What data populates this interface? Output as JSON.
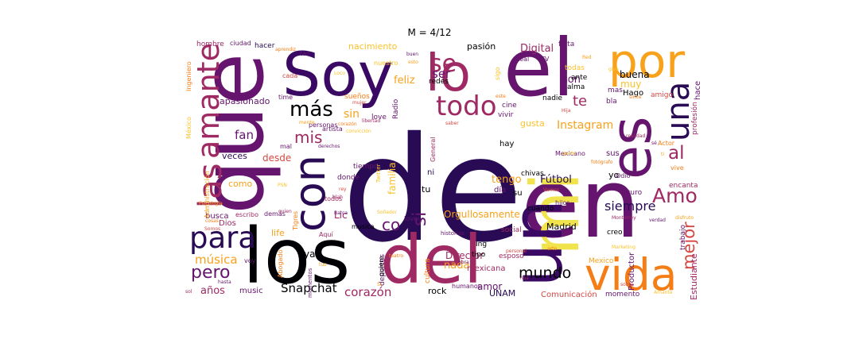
{
  "title": "M = 4/12",
  "palette": [
    "#000004",
    "#280b54",
    "#65156e",
    "#9f2a63",
    "#d44842",
    "#f57d15",
    "#fac228",
    "#fcffa4"
  ],
  "words": [
    {
      "text": "de",
      "color": "#280b54"
    },
    {
      "text": "en",
      "color": "#65156e"
    },
    {
      "text": "que",
      "color": "#65156e"
    },
    {
      "text": "los",
      "color": "#000004"
    },
    {
      "text": "del",
      "color": "#9f2a63"
    },
    {
      "text": "el",
      "color": "#65156e"
    },
    {
      "text": "mi",
      "color": "#f1e34b"
    },
    {
      "text": "Soy",
      "color": "#3a0963"
    },
    {
      "text": "lo",
      "color": "#9f2a63"
    },
    {
      "text": "por",
      "color": "#f8a11a"
    },
    {
      "text": "un",
      "color": "#3a0963"
    },
    {
      "text": "vida",
      "color": "#f57d15"
    },
    {
      "text": "es",
      "color": "#65156e"
    },
    {
      "text": "con",
      "color": "#280b54"
    },
    {
      "text": "las",
      "color": "#9f2a63"
    },
    {
      "text": "para",
      "color": "#280b54"
    },
    {
      "text": "una",
      "color": "#280b54"
    },
    {
      "text": "amante",
      "color": "#9f2a63"
    },
    {
      "text": "todo",
      "color": "#9f2a63"
    },
    {
      "text": "se",
      "color": "#9f2a63"
    },
    {
      "text": "más",
      "color": "#000004"
    },
    {
      "text": "Amo",
      "color": "#9f2a63"
    },
    {
      "text": "mejor",
      "color": "#d44842"
    },
    {
      "text": "pero",
      "color": "#65156e"
    },
    {
      "text": "al",
      "color": "#9f2a63"
    },
    {
      "text": "mis",
      "color": "#9f2a63"
    },
    {
      "text": "si",
      "color": "#65156e"
    },
    {
      "text": "co",
      "color": "#65156e"
    },
    {
      "text": "mundo",
      "color": "#000004"
    },
    {
      "text": "siempre",
      "color": "#280b54"
    },
    {
      "text": "Snapchat",
      "color": "#000004"
    },
    {
      "text": "Instagram",
      "color": "#f8a11a"
    },
    {
      "text": "fan",
      "color": "#65156e"
    },
    {
      "text": "música",
      "color": "#f8a11a"
    },
    {
      "text": "corazón",
      "color": "#9f2a63"
    },
    {
      "text": "te",
      "color": "#9f2a63"
    },
    {
      "text": "ser",
      "color": "#65156e"
    },
    {
      "text": "sin",
      "color": "#f8a11a"
    },
    {
      "text": "Digital",
      "color": "#9f2a63"
    },
    {
      "text": "son",
      "color": "#65156e"
    },
    {
      "text": "feliz",
      "color": "#f8a11a"
    },
    {
      "text": "tengo",
      "color": "#f8a11a"
    },
    {
      "text": "Fútbol",
      "color": "#280b54"
    },
    {
      "text": "nada",
      "color": "#f8a11a"
    },
    {
      "text": "Orgullosamente",
      "color": "#f8a11a"
    },
    {
      "text": "años",
      "color": "#9f2a63"
    },
    {
      "text": "amor",
      "color": "#65156e"
    },
    {
      "text": "Lic",
      "color": "#9f2a63"
    },
    {
      "text": "ya",
      "color": "#000004"
    },
    {
      "text": "desde",
      "color": "#d44842"
    },
    {
      "text": "veces",
      "color": "#280b54"
    },
    {
      "text": "como",
      "color": "#f8a11a"
    },
    {
      "text": "Director",
      "color": "#9f2a63"
    },
    {
      "text": "buena",
      "color": "#000004"
    },
    {
      "text": "muy",
      "color": "#fac228"
    },
    {
      "text": "gusta",
      "color": "#fac228"
    },
    {
      "text": "apasionado",
      "color": "#65156e"
    },
    {
      "text": "nacimiento",
      "color": "#fac228"
    },
    {
      "text": "pasión",
      "color": "#000004"
    },
    {
      "text": "Madrid",
      "color": "#000004"
    },
    {
      "text": "Estudiante",
      "color": "#9f2a63"
    },
    {
      "text": "Productor",
      "color": "#65156e"
    },
    {
      "text": "Comunicación",
      "color": "#d44842"
    },
    {
      "text": "rock",
      "color": "#000004"
    },
    {
      "text": "UNAM",
      "color": "#280b54"
    },
    {
      "text": "mexicana",
      "color": "#9f2a63"
    },
    {
      "text": "music",
      "color": "#65156e"
    },
    {
      "text": "life",
      "color": "#f8a11a"
    },
    {
      "text": "Dios",
      "color": "#9f2a63"
    },
    {
      "text": "busca",
      "color": "#65156e"
    },
    {
      "text": "hay",
      "color": "#000004"
    },
    {
      "text": "día",
      "color": "#65156e"
    },
    {
      "text": "tu",
      "color": "#000004"
    },
    {
      "text": "ni",
      "color": "#280b54"
    },
    {
      "text": "su",
      "color": "#000004"
    },
    {
      "text": "yo",
      "color": "#000004"
    },
    {
      "text": "sus",
      "color": "#65156e"
    },
    {
      "text": "Hago",
      "color": "#000004"
    },
    {
      "text": "amigo",
      "color": "#d44842"
    },
    {
      "text": "bla",
      "color": "#65156e"
    },
    {
      "text": "alma",
      "color": "#000004"
    },
    {
      "text": "ante",
      "color": "#000004"
    },
    {
      "text": "todas",
      "color": "#fac228"
    },
    {
      "text": "mas",
      "color": "#65156e"
    },
    {
      "text": "hace",
      "color": "#65156e"
    },
    {
      "text": "profesión",
      "color": "#9f2a63"
    },
    {
      "text": "futuro",
      "color": "#65156e"
    },
    {
      "text": "encanta",
      "color": "#9f2a63"
    },
    {
      "text": "trabajo",
      "color": "#65156e"
    },
    {
      "text": "creo",
      "color": "#000004"
    },
    {
      "text": "Mexico",
      "color": "#f8a11a"
    },
    {
      "text": "momento",
      "color": "#65156e"
    },
    {
      "text": "esposo",
      "color": "#9f2a63"
    },
    {
      "text": "cultura",
      "color": "#f57d15"
    },
    {
      "text": "deportes",
      "color": "#65156e"
    },
    {
      "text": "social",
      "color": "#9f2a63"
    },
    {
      "text": "Ing",
      "color": "#000004"
    },
    {
      "text": "tipo",
      "color": "#000004"
    },
    {
      "text": "hombre",
      "color": "#9f2a63"
    },
    {
      "text": "hacer",
      "color": "#280b54"
    },
    {
      "text": "ciudad",
      "color": "#65156e"
    },
    {
      "text": "tan",
      "color": "#65156e"
    },
    {
      "text": "cada",
      "color": "#d44842"
    },
    {
      "text": "time",
      "color": "#65156e"
    },
    {
      "text": "sueños",
      "color": "#f57d15"
    },
    {
      "text": "love",
      "color": "#65156e"
    },
    {
      "text": "redes",
      "color": "#000004"
    },
    {
      "text": "cine",
      "color": "#65156e"
    },
    {
      "text": "vivir",
      "color": "#65156e"
    },
    {
      "text": "nadie",
      "color": "#000004"
    },
    {
      "text": "Real",
      "color": "#65156e"
    },
    {
      "text": "TV",
      "color": "#65156e"
    },
    {
      "text": "tiempo",
      "color": "#65156e"
    },
    {
      "text": "donde",
      "color": "#65156e"
    },
    {
      "text": "quiero",
      "color": "#000004"
    },
    {
      "text": "General",
      "color": "#9f2a63"
    },
    {
      "text": "Radio",
      "color": "#65156e"
    },
    {
      "text": "familia",
      "color": "#fac228"
    },
    {
      "text": "chivas",
      "color": "#000004"
    },
    {
      "text": "Mexicano",
      "color": "#65156e"
    },
    {
      "text": "cuando",
      "color": "#000004"
    },
    {
      "text": "hijos",
      "color": "#65156e"
    },
    {
      "text": "vive",
      "color": "#f57d15"
    },
    {
      "text": "Actor",
      "color": "#f57d15"
    },
    {
      "text": "Odio",
      "color": "#65156e"
    },
    {
      "text": "todos",
      "color": "#9f2a63"
    },
    {
      "text": "escribo",
      "color": "#9f2a63"
    },
    {
      "text": "demás",
      "color": "#65156e"
    },
    {
      "text": "voy",
      "color": "#65156e"
    },
    {
      "text": "Abogado",
      "color": "#f57d15"
    },
    {
      "text": "Tigres",
      "color": "#f57d15"
    },
    {
      "text": "Ingeniero",
      "color": "#f57d15"
    },
    {
      "text": "Administración",
      "color": "#f8a11a"
    },
    {
      "text": "Aquí",
      "color": "#9f2a63"
    },
    {
      "text": "mal",
      "color": "#65156e"
    },
    {
      "text": "personas",
      "color": "#65156e"
    },
    {
      "text": "artista",
      "color": "#65156e"
    },
    {
      "text": "lover",
      "color": "#65156e"
    },
    {
      "text": "musica",
      "color": "#000004"
    },
    {
      "text": "historias",
      "color": "#65156e"
    },
    {
      "text": "momentos",
      "color": "#65156e"
    },
    {
      "text": "humanos",
      "color": "#65156e"
    },
    {
      "text": "falta",
      "color": "#65156e"
    },
    {
      "text": "nuestro",
      "color": "#fac228"
    },
    {
      "text": "sigo",
      "color": "#fac228"
    },
    {
      "text": "Twitter",
      "color": "#fac228"
    },
    {
      "text": "México",
      "color": "#fac228"
    }
  ],
  "minor_words": [
    "Red",
    "give",
    "since",
    "Hija",
    "realidad",
    "sé",
    "ti",
    "gente",
    "fotógrafo",
    "Vamos",
    "Monterrey",
    "verdad",
    "disfruto",
    "Marketing",
    "arte",
    "personal",
    "nos",
    "obra",
    "tus",
    "PSN",
    "cosas",
    "Somos",
    "sol",
    "hasta",
    "Sc",
    "Soñador",
    "teatro",
    "rey",
    "blah",
    "derechos",
    "mente",
    "convicción",
    "corazón",
    "mujer",
    "libertad",
    "buen",
    "esto",
    "Loco",
    "este",
    "saber",
    "quien",
    "Barca",
    "Psicología",
    "Amante",
    "aprendiz",
    "sobre",
    "Oficial"
  ]
}
